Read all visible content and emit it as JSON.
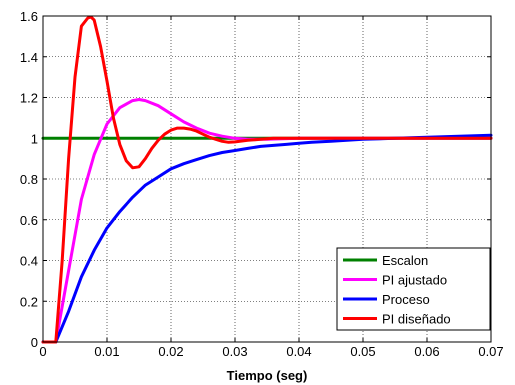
{
  "chart_data": {
    "type": "line",
    "title": "",
    "xlabel": "Tiempo (seg)",
    "ylabel": "",
    "xlim": [
      0,
      0.07
    ],
    "ylim": [
      0,
      1.6
    ],
    "xticks": [
      "0",
      "0.01",
      "0.02",
      "0.03",
      "0.04",
      "0.05",
      "0.06",
      "0.07"
    ],
    "yticks": [
      "0",
      "0.2",
      "0.4",
      "0.6",
      "0.8",
      "1",
      "1.2",
      "1.4",
      "1.6"
    ],
    "grid": true,
    "legend_position": "bottom-right",
    "series": [
      {
        "name": "Escalon",
        "color": "#008000",
        "x": [
          0,
          0.002,
          0.07
        ],
        "y": [
          1,
          1,
          1
        ]
      },
      {
        "name": "PI ajustado",
        "color": "#ff00ff",
        "x": [
          0,
          0.002,
          0.004,
          0.006,
          0.008,
          0.01,
          0.012,
          0.014,
          0.015,
          0.016,
          0.018,
          0.02,
          0.022,
          0.024,
          0.026,
          0.028,
          0.03,
          0.032,
          0.035,
          0.04,
          0.05,
          0.06,
          0.07
        ],
        "y": [
          0,
          0,
          0.35,
          0.7,
          0.92,
          1.07,
          1.15,
          1.185,
          1.19,
          1.185,
          1.16,
          1.12,
          1.08,
          1.05,
          1.025,
          1.01,
          1.0,
          0.995,
          0.995,
          1.0,
          1.0,
          1.0,
          1.0
        ]
      },
      {
        "name": "Proceso",
        "color": "#0000ff",
        "x": [
          0,
          0.002,
          0.004,
          0.006,
          0.008,
          0.01,
          0.012,
          0.014,
          0.016,
          0.018,
          0.02,
          0.022,
          0.024,
          0.026,
          0.028,
          0.03,
          0.032,
          0.034,
          0.036,
          0.038,
          0.04,
          0.042,
          0.045,
          0.05,
          0.055,
          0.06,
          0.065,
          0.07
        ],
        "y": [
          0,
          0,
          0.15,
          0.32,
          0.45,
          0.56,
          0.64,
          0.71,
          0.77,
          0.81,
          0.85,
          0.875,
          0.895,
          0.915,
          0.93,
          0.94,
          0.95,
          0.96,
          0.965,
          0.97,
          0.975,
          0.98,
          0.985,
          0.995,
          1.0,
          1.005,
          1.01,
          1.015
        ]
      },
      {
        "name": "PI diseñado",
        "color": "#ff0000",
        "x": [
          0,
          0.002,
          0.003,
          0.004,
          0.005,
          0.006,
          0.007,
          0.0075,
          0.008,
          0.009,
          0.01,
          0.011,
          0.012,
          0.013,
          0.014,
          0.015,
          0.016,
          0.017,
          0.018,
          0.019,
          0.02,
          0.021,
          0.022,
          0.023,
          0.024,
          0.025,
          0.026,
          0.027,
          0.028,
          0.029,
          0.03,
          0.032,
          0.034,
          0.036,
          0.04,
          0.05,
          0.06,
          0.07
        ],
        "y": [
          0,
          0,
          0.4,
          0.9,
          1.3,
          1.55,
          1.59,
          1.595,
          1.58,
          1.45,
          1.28,
          1.1,
          0.97,
          0.89,
          0.855,
          0.86,
          0.9,
          0.95,
          0.99,
          1.02,
          1.04,
          1.05,
          1.05,
          1.045,
          1.035,
          1.02,
          1.005,
          0.995,
          0.985,
          0.98,
          0.982,
          0.99,
          0.995,
          1.0,
          1.0,
          1.0,
          1.0,
          1.0
        ]
      }
    ]
  }
}
